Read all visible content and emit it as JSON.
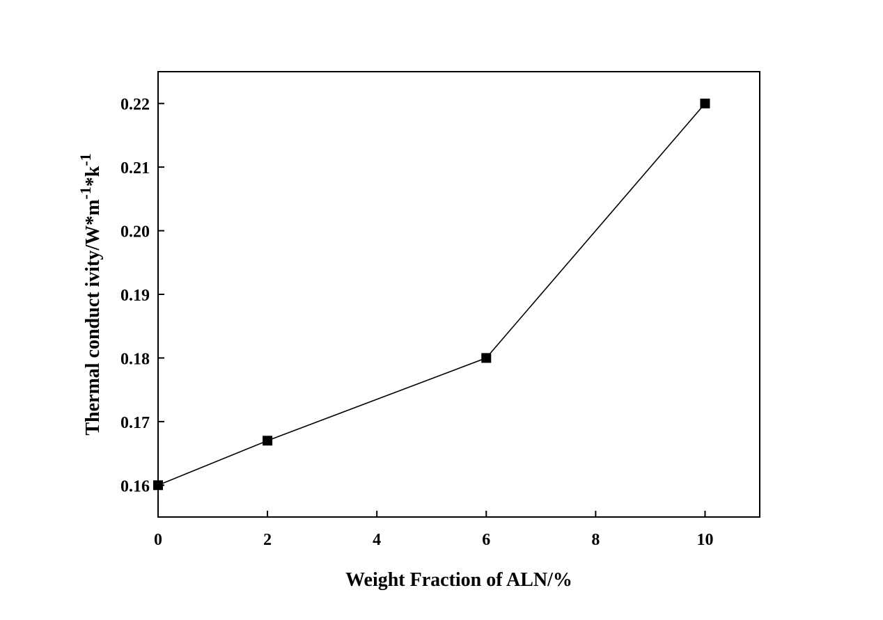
{
  "chart_data": {
    "type": "line",
    "xlabel": "Weight Fraction of ALN/%",
    "ylabel": {
      "base": "Thermal conduct ivity/W*m",
      "sup1": "-1",
      "mid": "*k",
      "sup2": "-1"
    },
    "xlim": [
      0,
      11
    ],
    "ylim": [
      0.155,
      0.225
    ],
    "xticks": [
      0,
      2,
      4,
      6,
      8,
      10
    ],
    "yticks": [
      0.16,
      0.17,
      0.18,
      0.19,
      0.2,
      0.21,
      0.22
    ],
    "ytick_labels": [
      "0.16",
      "0.17",
      "0.18",
      "0.19",
      "0.20",
      "0.21",
      "0.22"
    ],
    "grid": false,
    "series": [
      {
        "x": [
          0,
          2,
          6,
          10
        ],
        "y": [
          0.16,
          0.167,
          0.18,
          0.22
        ],
        "marker": "square",
        "color": "#000000"
      }
    ]
  }
}
